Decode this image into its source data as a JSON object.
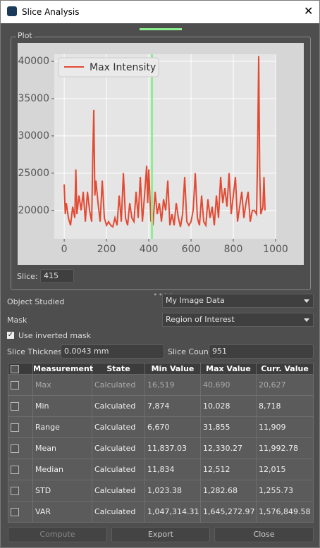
{
  "window": {
    "title": "Slice Analysis"
  },
  "plot_group": {
    "label": "Plot"
  },
  "chart_data": {
    "type": "line",
    "x": [
      0,
      5,
      10,
      20,
      30,
      40,
      50,
      55,
      60,
      70,
      80,
      90,
      100,
      110,
      120,
      130,
      135,
      140,
      145,
      150,
      160,
      170,
      180,
      190,
      200,
      210,
      220,
      230,
      240,
      250,
      260,
      270,
      280,
      290,
      300,
      310,
      320,
      330,
      340,
      350,
      360,
      370,
      380,
      390,
      395,
      400,
      410,
      415,
      420,
      430,
      440,
      450,
      460,
      470,
      480,
      490,
      500,
      510,
      520,
      530,
      540,
      550,
      560,
      570,
      580,
      590,
      600,
      610,
      620,
      630,
      640,
      650,
      660,
      670,
      680,
      690,
      700,
      710,
      720,
      730,
      740,
      750,
      760,
      770,
      780,
      790,
      800,
      810,
      820,
      830,
      840,
      850,
      860,
      870,
      880,
      890,
      900,
      910,
      915,
      920,
      925,
      930,
      940,
      945,
      950
    ],
    "series": [
      {
        "name": "Max Intensity",
        "color": "#e24a33",
        "values": [
          23500,
          19500,
          21000,
          19000,
          18000,
          20500,
          19000,
          25500,
          19500,
          22000,
          20000,
          22500,
          18500,
          22500,
          20000,
          18500,
          27000,
          33500,
          22000,
          24000,
          21000,
          18500,
          24000,
          19000,
          18000,
          18500,
          18000,
          17800,
          19000,
          18000,
          22000,
          18500,
          25000,
          19000,
          18000,
          21000,
          19000,
          18500,
          22500,
          19000,
          24500,
          18500,
          22000,
          26000,
          21000,
          25500,
          18500,
          20627,
          18000,
          22500,
          19500,
          21000,
          18500,
          21500,
          20000,
          24000,
          18000,
          19500,
          18000,
          21000,
          19000,
          17800,
          19500,
          24500,
          18500,
          18000,
          18500,
          20000,
          25000,
          19000,
          18000,
          22000,
          18500,
          18000,
          21500,
          19000,
          20500,
          18000,
          22000,
          19000,
          24500,
          21000,
          23000,
          20500,
          25000,
          19500,
          22000,
          24500,
          18500,
          20500,
          22500,
          19000,
          21000,
          22500,
          18500,
          20000,
          20000,
          19500,
          28000,
          40700,
          25000,
          19500,
          20500,
          24500,
          20000
        ]
      }
    ],
    "xlim": [
      -47,
      1000
    ],
    "xticks": [
      0,
      200,
      400,
      600,
      800,
      1000
    ],
    "ylim": [
      16200,
      40950
    ],
    "yticks": [
      20000,
      25000,
      30000,
      35000,
      40000
    ],
    "grid": true,
    "legend": "upper left"
  },
  "slice": {
    "label": "Slice:",
    "value": 415
  },
  "form": {
    "object_label": "Object Studied",
    "object_value": "My Image Data",
    "mask_label": "Mask",
    "mask_value": "Region of Interest",
    "inverted_label": "Use inverted mask",
    "thickness_label": "Slice Thickness",
    "thickness_value": "0.0043 mm",
    "count_label": "Slice Count",
    "count_value": "951"
  },
  "table": {
    "headers": [
      "Measurement",
      "State",
      "Min Value",
      "Max Value",
      "Curr. Value"
    ],
    "rows": [
      [
        "Max",
        "Calculated",
        "16,519",
        "40,690",
        "20,627"
      ],
      [
        "Min",
        "Calculated",
        "7,874",
        "10,028",
        "8,718"
      ],
      [
        "Range",
        "Calculated",
        "6,670",
        "31,855",
        "11,909"
      ],
      [
        "Mean",
        "Calculated",
        "11,837.03",
        "12,330.27",
        "11,992.78"
      ],
      [
        "Median",
        "Calculated",
        "11,834",
        "12,512",
        "12,015"
      ],
      [
        "STD",
        "Calculated",
        "1,023.38",
        "1,282.68",
        "1,255.73"
      ],
      [
        "VAR",
        "Calculated",
        "1,047,314.31",
        "1,645,272.97",
        "1,576,849.58"
      ]
    ]
  },
  "buttons": [
    "Compute",
    "Export",
    "Close"
  ]
}
